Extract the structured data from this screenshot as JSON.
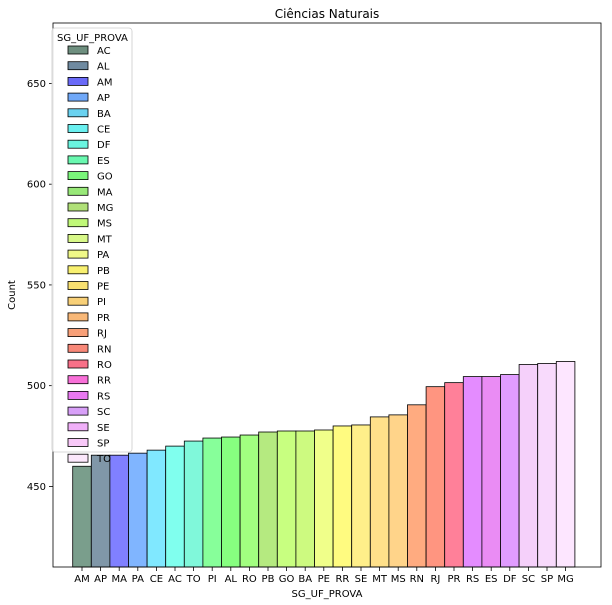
{
  "chart_data": {
    "type": "bar",
    "title": "Ciências Naturais",
    "xlabel": "SG_UF_PROVA",
    "ylabel": "Count",
    "ylim": [
      410,
      680
    ],
    "yticks": [
      450,
      500,
      550,
      600,
      650
    ],
    "grid": false,
    "categories": [
      "AM",
      "AP",
      "MA",
      "PA",
      "CE",
      "AC",
      "TO",
      "PI",
      "AL",
      "RO",
      "PB",
      "GO",
      "BA",
      "PE",
      "RR",
      "SE",
      "MT",
      "MS",
      "RN",
      "RJ",
      "PR",
      "RS",
      "ES",
      "DF",
      "SC",
      "SP",
      "MG"
    ],
    "values": [
      460,
      465.5,
      465.5,
      466.5,
      468,
      470,
      472.5,
      474,
      474.5,
      475.5,
      477,
      477.5,
      477.5,
      478,
      480,
      480.5,
      484.5,
      485.5,
      490.5,
      499.5,
      501.5,
      504.5,
      504.5,
      505.5,
      510.5,
      511,
      512
    ],
    "bar_colors": {
      "AC": "#80ffee",
      "AL": "#87ff80",
      "AM": "#7a9e8c",
      "AP": "#8097a8",
      "BA": "#cdfa80",
      "CE": "#80e8ff",
      "DF": "#e09cff",
      "ES": "#ea8cf4",
      "GO": "#c8ff80",
      "MA": "#8080ff",
      "MG": "#fde6ff",
      "MS": "#ffd48a",
      "MT": "#ffe08a",
      "PA": "#80b5ff",
      "PB": "#b5ea80",
      "PE": "#f0ff8a",
      "PI": "#87ff9a",
      "PR": "#ff8099",
      "RJ": "#ff9580",
      "RN": "#ffab80",
      "RO": "#a2ff80",
      "RR": "#fffb80",
      "RS": "#e48cff",
      "SC": "#f5d0fa",
      "SE": "#ffef8a",
      "SP": "#f8dafc",
      "TO": "#80f8da"
    },
    "legend": {
      "title": "SG_UF_PROVA",
      "placement": "upper-left",
      "entries": [
        {
          "label": "AC",
          "color": "#6e8f7f"
        },
        {
          "label": "AL",
          "color": "#6f8aa0"
        },
        {
          "label": "AM",
          "color": "#6a6af8"
        },
        {
          "label": "AP",
          "color": "#70a8f8"
        },
        {
          "label": "BA",
          "color": "#6ad2f0"
        },
        {
          "label": "CE",
          "color": "#6af0f0"
        },
        {
          "label": "DF",
          "color": "#6af5e0"
        },
        {
          "label": "ES",
          "color": "#6af8b0"
        },
        {
          "label": "GO",
          "color": "#7af57a"
        },
        {
          "label": "MA",
          "color": "#98e878"
        },
        {
          "label": "MG",
          "color": "#b0e078"
        },
        {
          "label": "MS",
          "color": "#c0f878"
        },
        {
          "label": "MT",
          "color": "#d8f888"
        },
        {
          "label": "PA",
          "color": "#f0f888"
        },
        {
          "label": "PB",
          "color": "#f8f070"
        },
        {
          "label": "PE",
          "color": "#f8e070"
        },
        {
          "label": "PI",
          "color": "#f8d078"
        },
        {
          "label": "PR",
          "color": "#f8b878"
        },
        {
          "label": "RJ",
          "color": "#f8a078"
        },
        {
          "label": "RN",
          "color": "#f88878"
        },
        {
          "label": "RO",
          "color": "#f87088"
        },
        {
          "label": "RR",
          "color": "#f870d8"
        },
        {
          "label": "RS",
          "color": "#e878f0"
        },
        {
          "label": "SC",
          "color": "#d8a0f8"
        },
        {
          "label": "SE",
          "color": "#f0b0f8"
        },
        {
          "label": "SP",
          "color": "#f8c8f8"
        },
        {
          "label": "TO",
          "color": "#fce8fc"
        }
      ]
    }
  }
}
